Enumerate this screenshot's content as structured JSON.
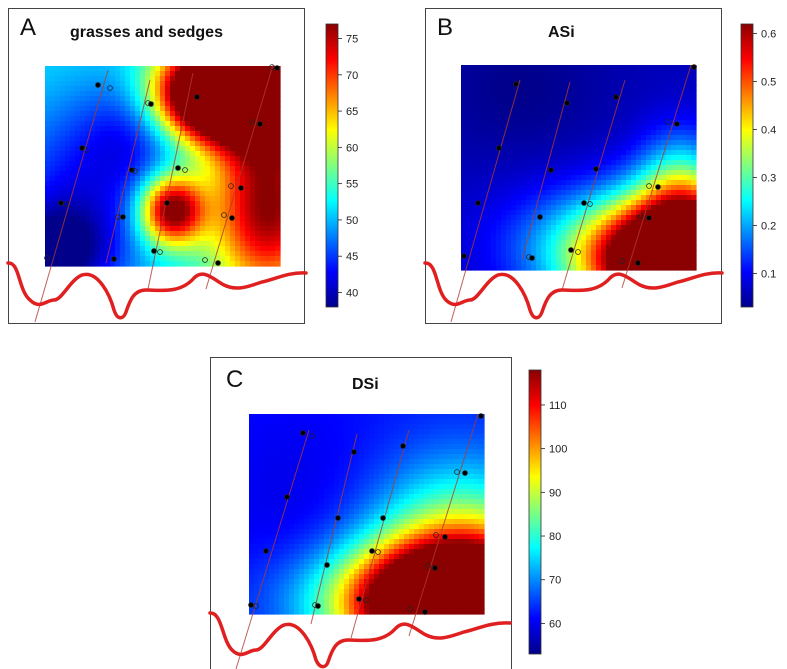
{
  "chart_data": [
    {
      "type": "heatmap",
      "panel": "A",
      "title": "grasses and sedges",
      "colorbar": {
        "ticks": [
          40,
          45,
          50,
          55,
          60,
          65,
          70,
          75
        ],
        "range": [
          38,
          77
        ]
      },
      "colors": [
        "#00008b",
        "#0000ff",
        "#007fff",
        "#00ffff",
        "#7fff7f",
        "#ffff00",
        "#ff7f00",
        "#ff0000",
        "#8b0000"
      ]
    },
    {
      "type": "heatmap",
      "panel": "B",
      "title": "ASi",
      "colorbar": {
        "ticks": [
          0.1,
          0.2,
          0.3,
          0.4,
          0.5,
          0.6
        ],
        "range": [
          0.03,
          0.62
        ]
      },
      "colors": [
        "#00008b",
        "#0000ff",
        "#007fff",
        "#00ffff",
        "#7fff7f",
        "#ffff00",
        "#ff7f00",
        "#ff0000",
        "#8b0000"
      ]
    },
    {
      "type": "heatmap",
      "panel": "C",
      "title": "DSi",
      "colorbar": {
        "ticks": [
          60,
          70,
          80,
          90,
          100,
          110
        ],
        "range": [
          53,
          118
        ]
      },
      "colors": [
        "#00008b",
        "#0000ff",
        "#007fff",
        "#00ffff",
        "#7fff7f",
        "#ffff00",
        "#ff7f00",
        "#ff0000",
        "#8b0000"
      ]
    }
  ]
}
